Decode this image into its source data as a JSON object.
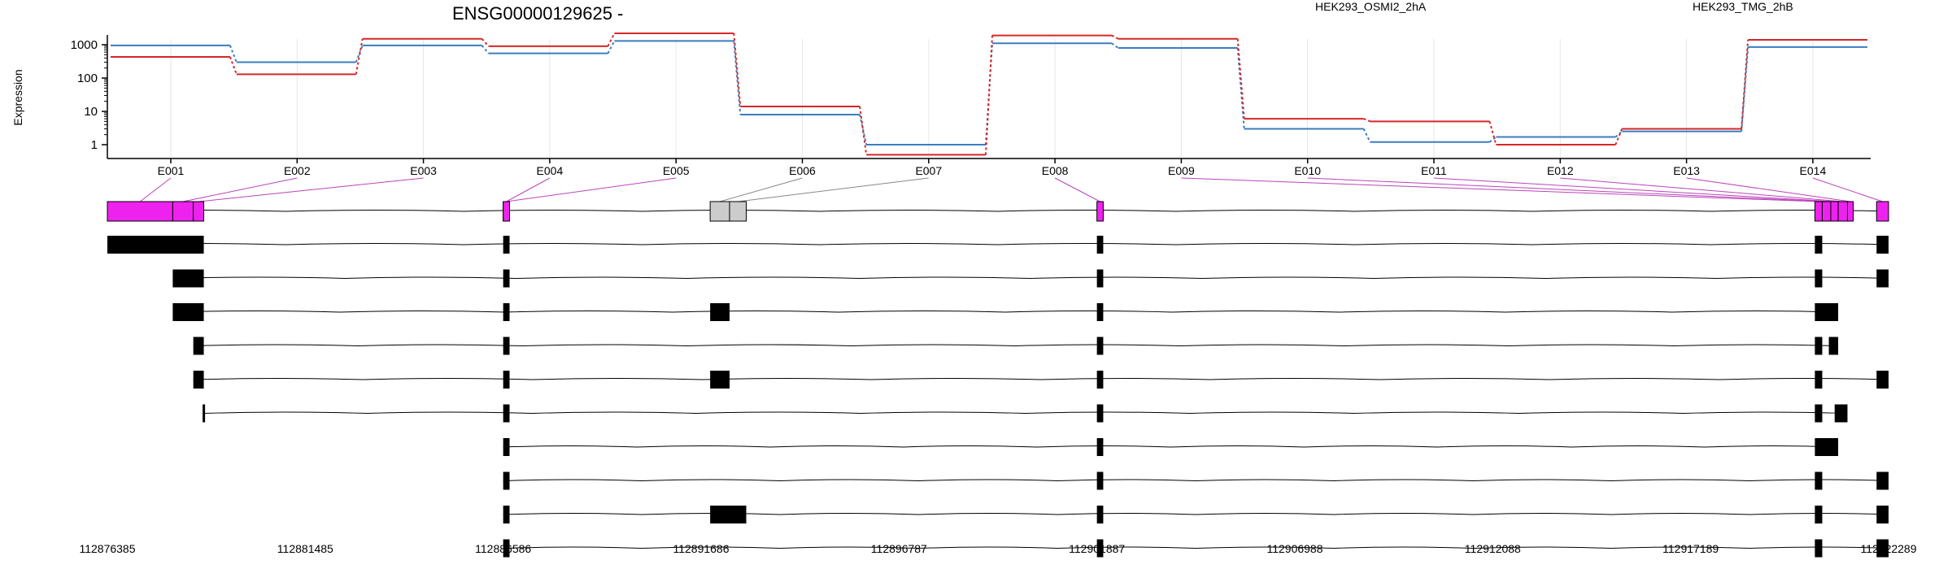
{
  "gene_title": "ENSG00000129625 -",
  "colors": {
    "red": "#d62728",
    "blue": "#3a7dbf",
    "highlight": "#ee22ee",
    "neutral": "#cccccc"
  },
  "chart_data": {
    "type": "line",
    "ylabel": "Expression",
    "yscale": "log",
    "yticks": [
      "1",
      "10",
      "100",
      "1000"
    ],
    "categories": [
      "E001",
      "E002",
      "E003",
      "E004",
      "E005",
      "E006",
      "E007",
      "E008",
      "E009",
      "E010",
      "E011",
      "E012",
      "E013",
      "E014"
    ],
    "series": [
      {
        "name": "HEK293_OSMI2_2hA",
        "color": "#d62728",
        "values": [
          430,
          130,
          1500,
          900,
          2200,
          14,
          0.5,
          1900,
          1500,
          6,
          5,
          1,
          3,
          1400
        ]
      },
      {
        "name": "HEK293_TMG_2hB",
        "color": "#3a7dbf",
        "values": [
          950,
          300,
          950,
          550,
          1300,
          8,
          1,
          1100,
          800,
          3,
          1.2,
          1.7,
          2.5,
          850
        ]
      }
    ],
    "exon_highlight": [
      "highlight",
      "highlight",
      "highlight",
      "highlight",
      "highlight",
      "neutral",
      "neutral",
      "highlight",
      "highlight",
      "highlight",
      "highlight",
      "highlight",
      "highlight",
      "highlight"
    ]
  },
  "genome": {
    "ticks": [
      "112876385",
      "112881485",
      "112886586",
      "112891686",
      "112896787",
      "112901887",
      "112906988",
      "112912088",
      "112917189",
      "112922289"
    ]
  }
}
